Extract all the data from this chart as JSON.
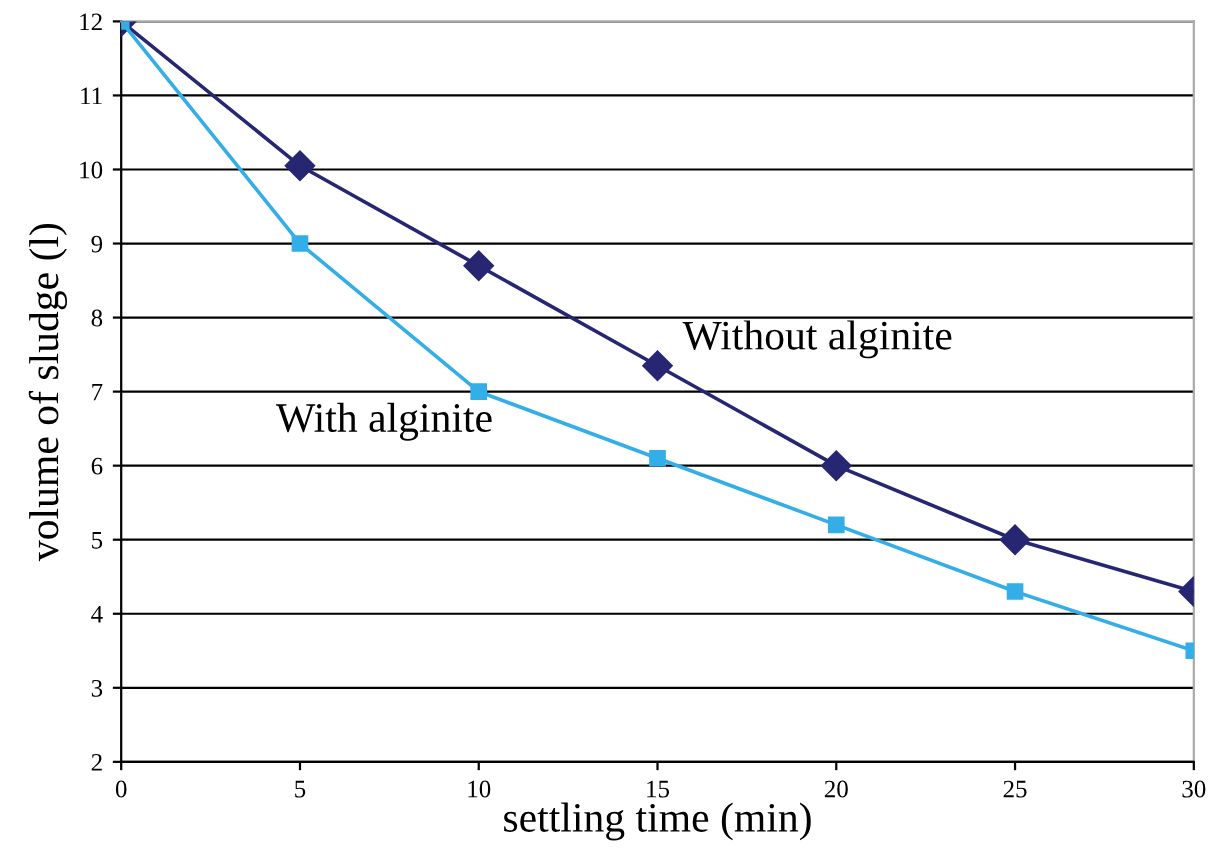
{
  "chart_data": {
    "type": "line",
    "xlabel": "settling time (min)",
    "ylabel": "volume of sludge (l)",
    "x": [
      0,
      5,
      10,
      15,
      20,
      25,
      30
    ],
    "series": [
      {
        "name": "Without alginite",
        "color": "#262673",
        "marker": "diamond",
        "values": [
          12,
          10.05,
          8.7,
          7.35,
          6.0,
          5.0,
          4.3
        ]
      },
      {
        "name": "With alginite",
        "color": "#33aee8",
        "marker": "square",
        "values": [
          12,
          9.0,
          7.0,
          6.1,
          5.2,
          4.3,
          3.5
        ]
      }
    ],
    "xlim": [
      0,
      30
    ],
    "ylim": [
      2,
      12
    ],
    "xticks": [
      0,
      5,
      10,
      15,
      20,
      25,
      30
    ],
    "yticks": [
      2,
      3,
      4,
      5,
      6,
      7,
      8,
      9,
      10,
      11,
      12
    ],
    "grid": "y",
    "legend": false,
    "line_style": "solid"
  }
}
